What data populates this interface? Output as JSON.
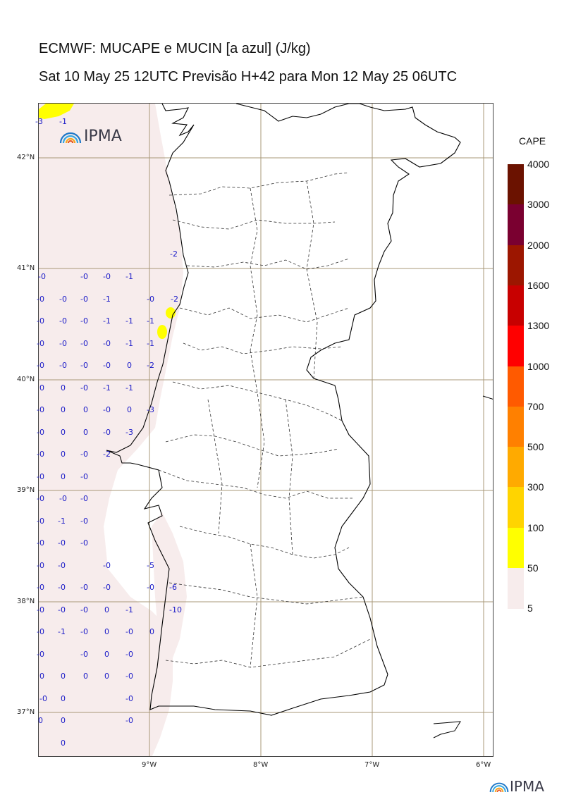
{
  "header": {
    "title": "ECMWF: MUCAPE e MUCIN [a azul] (J/kg)",
    "subtitle": "Sat 10 May 25 12UTC Previsão H+42 para Mon 12 May 25 06UTC"
  },
  "map": {
    "lat_labels": [
      "42°N",
      "41°N",
      "40°N",
      "39°N",
      "38°N",
      "37°N"
    ],
    "lon_labels": [
      "9°W",
      "8°W",
      "7°W",
      "6°W"
    ],
    "cin_values": [
      [
        "-3",
        "-1"
      ],
      [
        "-2"
      ],
      [
        "-0",
        "-0",
        "-0",
        "-1"
      ],
      [
        "-0",
        "-0",
        "-0",
        "-1",
        "-0",
        "-2"
      ],
      [
        "-0",
        "-0",
        "-0",
        "-1",
        "-1",
        "-1"
      ],
      [
        "-0",
        "-0",
        "-0",
        "-0",
        "-1",
        "-1"
      ],
      [
        "-0",
        "-0",
        "-0",
        "-0",
        "0",
        "-2"
      ],
      [
        "0",
        "0",
        "-0",
        "-1",
        "-1"
      ],
      [
        "-0",
        "0",
        "0",
        "-0",
        "0",
        "-3"
      ],
      [
        "-0",
        "0",
        "0",
        "-0",
        "-3"
      ],
      [
        "-0",
        "0",
        "-0",
        "-2"
      ],
      [
        "-0",
        "0",
        "-0"
      ],
      [
        "-0",
        "-0",
        "-0"
      ],
      [
        "-0",
        "-1",
        "-0"
      ],
      [
        "-0",
        "-0",
        "-0"
      ],
      [
        "-0",
        "-0",
        "-0",
        "-5"
      ],
      [
        "-0",
        "-0",
        "-0",
        "-0",
        "-0",
        "-6"
      ],
      [
        "-0",
        "-0",
        "-0",
        "0",
        "-1",
        "-10"
      ],
      [
        "-0",
        "-1",
        "-0",
        "0",
        "-0",
        "0"
      ],
      [
        "-0",
        "-0",
        "0",
        "-0"
      ],
      [
        "0",
        "0",
        "0",
        "0",
        "-0"
      ],
      [
        "-0",
        "0",
        "-0"
      ],
      [
        "0",
        "0",
        "-0"
      ],
      [
        "0"
      ]
    ]
  },
  "legend": {
    "title": "CAPE",
    "levels": [
      "4000",
      "3000",
      "2000",
      "1600",
      "1300",
      "1000",
      "700",
      "500",
      "300",
      "100",
      "50",
      "5"
    ],
    "colors": [
      "#6b1200",
      "#7a0030",
      "#9c1600",
      "#c80000",
      "#ff0000",
      "#ff5a00",
      "#ff8000",
      "#ffaa00",
      "#ffd400",
      "#ffff00",
      "#f7ecec"
    ]
  },
  "logos": {
    "map_logo": "IPMA",
    "footer_logo": "IPMA"
  },
  "colors": {
    "cin_text": "#1a1ac8",
    "low_cape_fill": "#f7ecec",
    "high_cape_fill": "#ffff00",
    "grid": "#a89878"
  }
}
